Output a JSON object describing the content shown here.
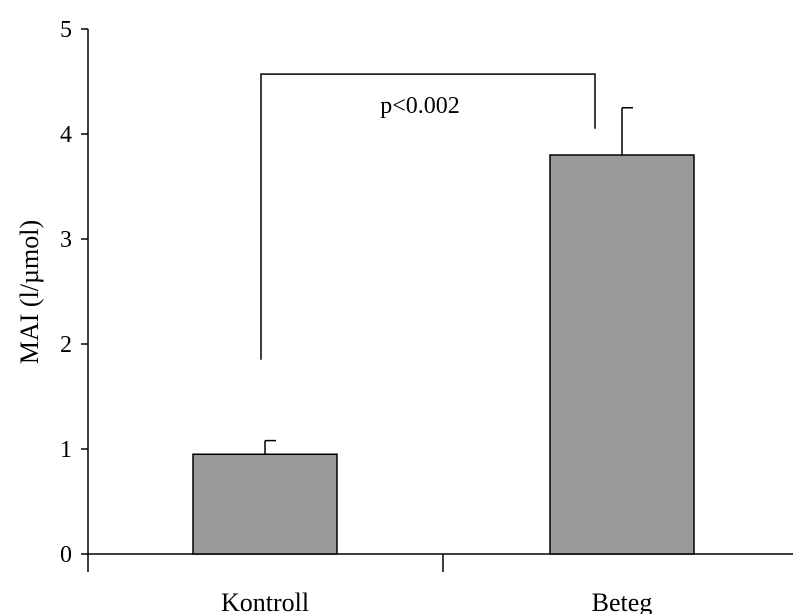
{
  "chart_data": {
    "type": "bar",
    "categories": [
      "Kontroll",
      "Beteg"
    ],
    "values": [
      0.95,
      3.8
    ],
    "error_upper": [
      1.08,
      4.25
    ],
    "ylabel": "MAI (l/µmol)",
    "xlabel": "",
    "ylim": [
      0,
      5
    ],
    "yticks": [
      "0",
      "1",
      "2",
      "3",
      "4",
      "5"
    ],
    "grid": false,
    "bar_color": "#999999",
    "annotation": {
      "text": "p<0.002",
      "left_bracket_bottom": 1.85,
      "right_bracket_bottom": 4.05,
      "bracket_top": 4.57
    }
  }
}
